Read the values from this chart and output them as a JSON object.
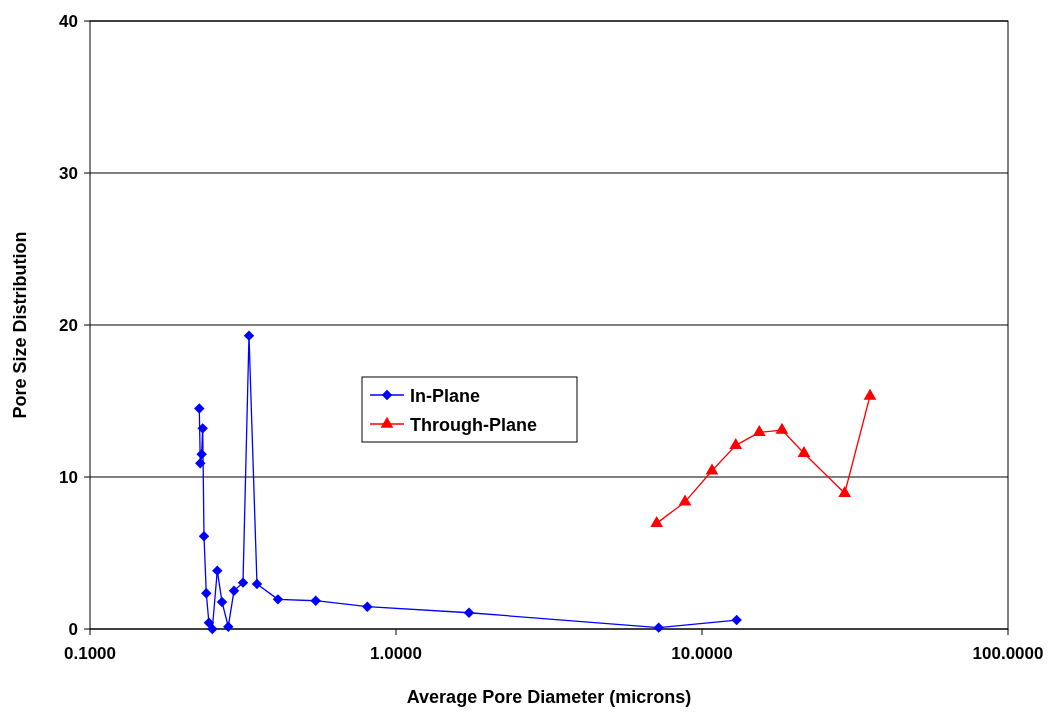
{
  "chart_data": {
    "type": "line",
    "xlabel": "Average Pore Diameter (microns)",
    "ylabel": "Pore Size Distribution",
    "log": "x",
    "xlim": [
      0.1,
      100
    ],
    "xticks": [
      {
        "value": 0.1,
        "label": "0.1000"
      },
      {
        "value": 1,
        "label": "1.0000"
      },
      {
        "value": 10,
        "label": "10.0000"
      },
      {
        "value": 100,
        "label": "100.0000"
      }
    ],
    "ylim": [
      0,
      40
    ],
    "yticks": [
      0,
      10,
      20,
      30,
      40
    ],
    "grid": "y",
    "legend": "center",
    "line_style": "solid",
    "series": [
      {
        "name": "In-Plane",
        "color": "#0000ff",
        "marker": "diamond",
        "x": [
          0.2276,
          0.2293,
          0.2317,
          0.2335,
          0.2358,
          0.2399,
          0.2447,
          0.251,
          0.2606,
          0.27,
          0.2831,
          0.2955,
          0.3162,
          0.3308,
          0.3513,
          0.4114,
          0.5465,
          0.8058,
          1.732,
          7.22,
          12.98
        ],
        "values": [
          14.5,
          10.9,
          11.5,
          13.2,
          6.1,
          2.35,
          0.41,
          0,
          3.84,
          1.78,
          0.15,
          2.52,
          3.05,
          19.3,
          2.96,
          1.95,
          1.86,
          1.47,
          1.07,
          0.09,
          0.59
        ]
      },
      {
        "name": "Through-Plane",
        "color": "#ff0000",
        "marker": "triangle",
        "x": [
          7.11,
          8.8,
          10.78,
          12.89,
          15.39,
          18.25,
          21.54,
          29.26,
          35.4
        ],
        "values": [
          6.95,
          8.36,
          10.41,
          12.08,
          12.94,
          13.09,
          11.56,
          8.93,
          15.33
        ]
      }
    ]
  }
}
